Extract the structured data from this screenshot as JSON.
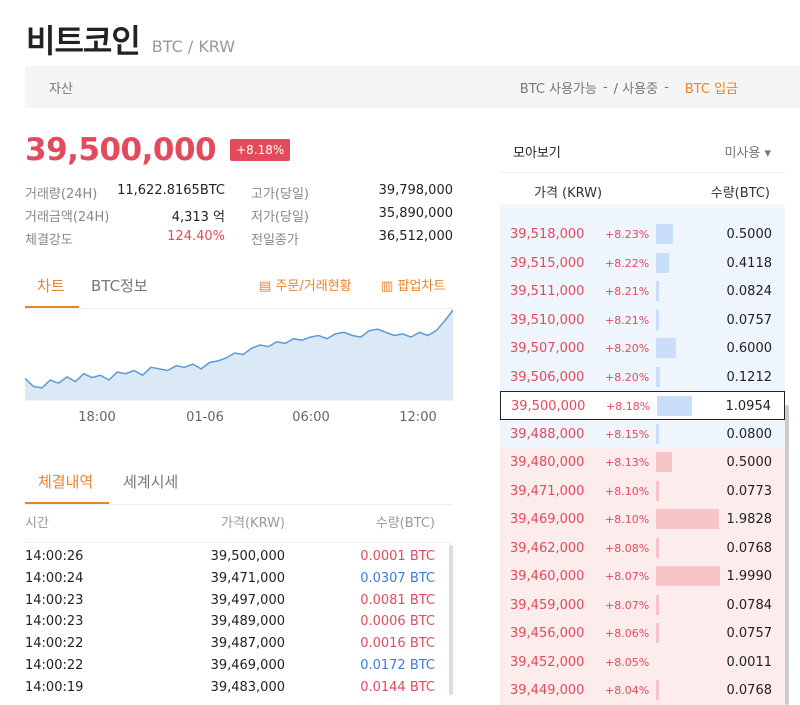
{
  "header": {
    "coin_name": "비트코인",
    "pair": "BTC / KRW"
  },
  "asset_bar": {
    "label": "자산",
    "available": "BTC 사용가능",
    "in_use_value": "-",
    "in_use_label": "/ 사용중",
    "in_use_value2": "-",
    "deposit": "BTC 입금"
  },
  "price": {
    "current": "39,500,000",
    "change": "+8.18%"
  },
  "stats": [
    {
      "left_label": "거래량(24H)",
      "left_value": "11,622.8165BTC",
      "right_label": "고가(당일)",
      "right_value": "39,798,000"
    },
    {
      "left_label": "거래금액(24H)",
      "left_value": "4,313 억",
      "right_label": "저가(당일)",
      "right_value": "35,890,000"
    },
    {
      "left_label": "체결강도",
      "left_value": "124.40%",
      "right_label": "전일종가",
      "right_value": "36,512,000"
    }
  ],
  "chart_tabs": {
    "chart": "차트",
    "btc_info": "BTC정보",
    "order_link": "주문/거래현황",
    "popup_link": "팝업차트"
  },
  "chart_data": {
    "type": "area",
    "xlabel": "",
    "ylabel": "",
    "x_ticks": [
      "18:00",
      "01-06",
      "06:00",
      "12:00"
    ],
    "values": [
      37350000,
      37100000,
      37050000,
      37300000,
      37200000,
      37400000,
      37250000,
      37500000,
      37380000,
      37450000,
      37300000,
      37550000,
      37500000,
      37600000,
      37450000,
      37700000,
      37650000,
      37600000,
      37750000,
      37700000,
      37800000,
      37650000,
      37850000,
      37900000,
      38000000,
      38150000,
      38100000,
      38300000,
      38400000,
      38350000,
      38500000,
      38450000,
      38600000,
      38550000,
      38650000,
      38700000,
      38600000,
      38750000,
      38800000,
      38700000,
      38650000,
      38850000,
      38900000,
      38800000,
      38700000,
      38750000,
      38650000,
      38800000,
      38700000,
      38850000,
      39150000,
      39500000
    ],
    "colors": {
      "line": "#5b9bd5",
      "fill": "#dbe8f5"
    }
  },
  "trade_tabs": {
    "executed": "체결내역",
    "world": "세계시세"
  },
  "trade_head": {
    "time": "시간",
    "price": "가격(KRW)",
    "qty": "수량(BTC)"
  },
  "trades": [
    {
      "time": "14:00:26",
      "price": "39,500,000",
      "qty": "0.0001 BTC",
      "side": "sell"
    },
    {
      "time": "14:00:24",
      "price": "39,471,000",
      "qty": "0.0307 BTC",
      "side": "buy"
    },
    {
      "time": "14:00:23",
      "price": "39,497,000",
      "qty": "0.0081 BTC",
      "side": "sell"
    },
    {
      "time": "14:00:23",
      "price": "39,489,000",
      "qty": "0.0006 BTC",
      "side": "sell"
    },
    {
      "time": "14:00:22",
      "price": "39,487,000",
      "qty": "0.0016 BTC",
      "side": "sell"
    },
    {
      "time": "14:00:22",
      "price": "39,469,000",
      "qty": "0.0172 BTC",
      "side": "buy"
    },
    {
      "time": "14:00:19",
      "price": "39,483,000",
      "qty": "0.0144 BTC",
      "side": "sell"
    }
  ],
  "orderbook": {
    "title": "모아보기",
    "mode": "미사용",
    "col_price": "가격 (KRW)",
    "col_qty": "수량(BTC)",
    "rows": [
      {
        "price": "39,518,000",
        "pct": "+8.23%",
        "qty": "0.5000",
        "side": "ask",
        "bar": 0.26
      },
      {
        "price": "39,515,000",
        "pct": "+8.22%",
        "qty": "0.4118",
        "side": "ask",
        "bar": 0.21
      },
      {
        "price": "39,511,000",
        "pct": "+8.21%",
        "qty": "0.0824",
        "side": "ask",
        "bar": 0.04
      },
      {
        "price": "39,510,000",
        "pct": "+8.21%",
        "qty": "0.0757",
        "side": "ask",
        "bar": 0.04
      },
      {
        "price": "39,507,000",
        "pct": "+8.20%",
        "qty": "0.6000",
        "side": "ask",
        "bar": 0.31
      },
      {
        "price": "39,506,000",
        "pct": "+8.20%",
        "qty": "0.1212",
        "side": "ask",
        "bar": 0.06
      },
      {
        "price": "39,500,000",
        "pct": "+8.18%",
        "qty": "1.0954",
        "side": "ask",
        "bar": 0.55,
        "current": true
      },
      {
        "price": "39,488,000",
        "pct": "+8.15%",
        "qty": "0.0800",
        "side": "ask",
        "bar": 0.04
      },
      {
        "price": "39,480,000",
        "pct": "+8.13%",
        "qty": "0.5000",
        "side": "bid",
        "bar": 0.25
      },
      {
        "price": "39,471,000",
        "pct": "+8.10%",
        "qty": "0.0773",
        "side": "bid",
        "bar": 0.04
      },
      {
        "price": "39,469,000",
        "pct": "+8.10%",
        "qty": "1.9828",
        "side": "bid",
        "bar": 0.99
      },
      {
        "price": "39,462,000",
        "pct": "+8.08%",
        "qty": "0.0768",
        "side": "bid",
        "bar": 0.04
      },
      {
        "price": "39,460,000",
        "pct": "+8.07%",
        "qty": "1.9990",
        "side": "bid",
        "bar": 1.0
      },
      {
        "price": "39,459,000",
        "pct": "+8.07%",
        "qty": "0.0784",
        "side": "bid",
        "bar": 0.04
      },
      {
        "price": "39,456,000",
        "pct": "+8.06%",
        "qty": "0.0757",
        "side": "bid",
        "bar": 0.04
      },
      {
        "price": "39,452,000",
        "pct": "+8.05%",
        "qty": "0.0011",
        "side": "bid",
        "bar": 0.0
      },
      {
        "price": "39,449,000",
        "pct": "+8.04%",
        "qty": "0.0768",
        "side": "bid",
        "bar": 0.04
      }
    ]
  }
}
